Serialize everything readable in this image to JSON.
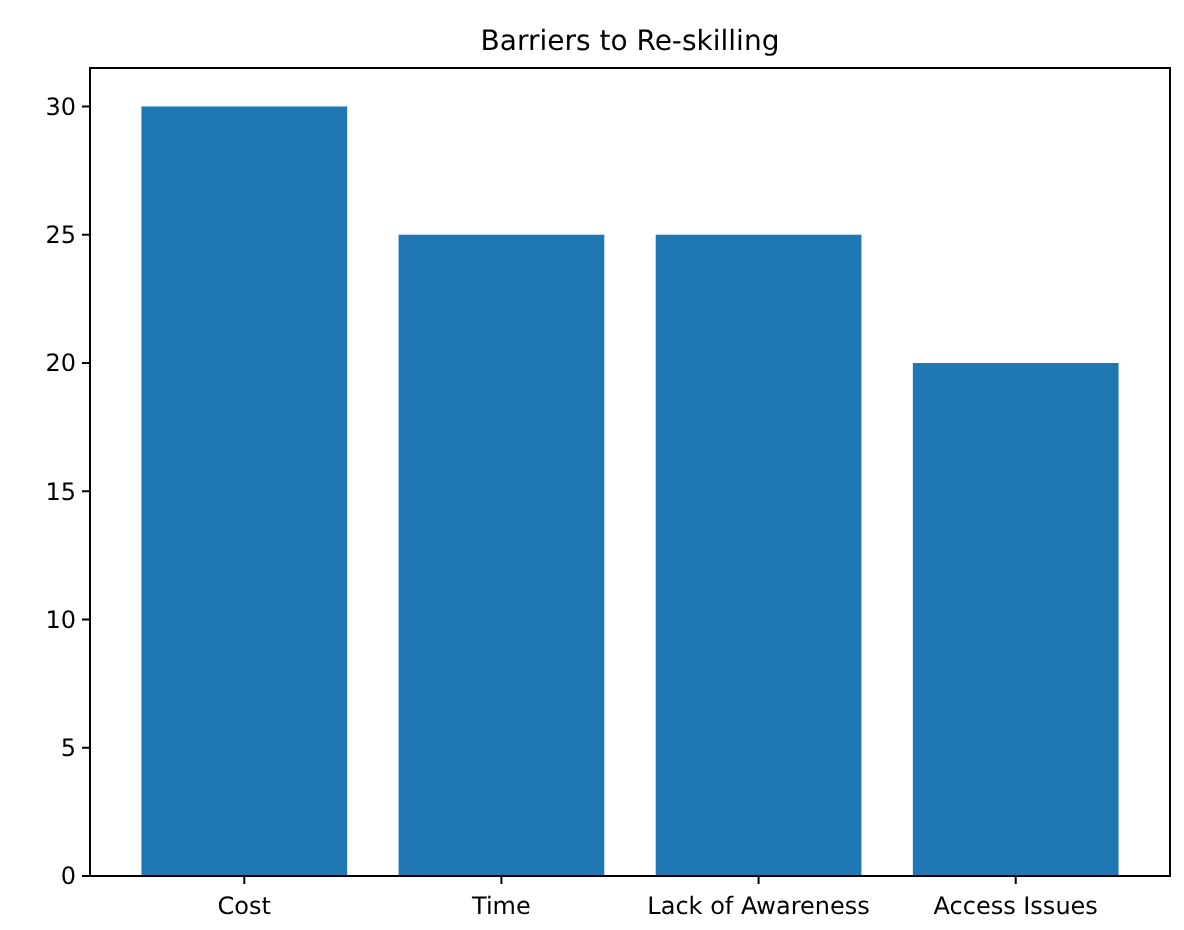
{
  "chart_data": {
    "type": "bar",
    "title": "Barriers to Re-skilling",
    "categories": [
      "Cost",
      "Time",
      "Lack of Awareness",
      "Access Issues"
    ],
    "values": [
      30,
      25,
      25,
      20
    ],
    "color": "#1f77b4",
    "ylim": [
      0,
      31.5
    ],
    "yticks": [
      0,
      5,
      10,
      15,
      20,
      25,
      30
    ],
    "grid": false
  }
}
